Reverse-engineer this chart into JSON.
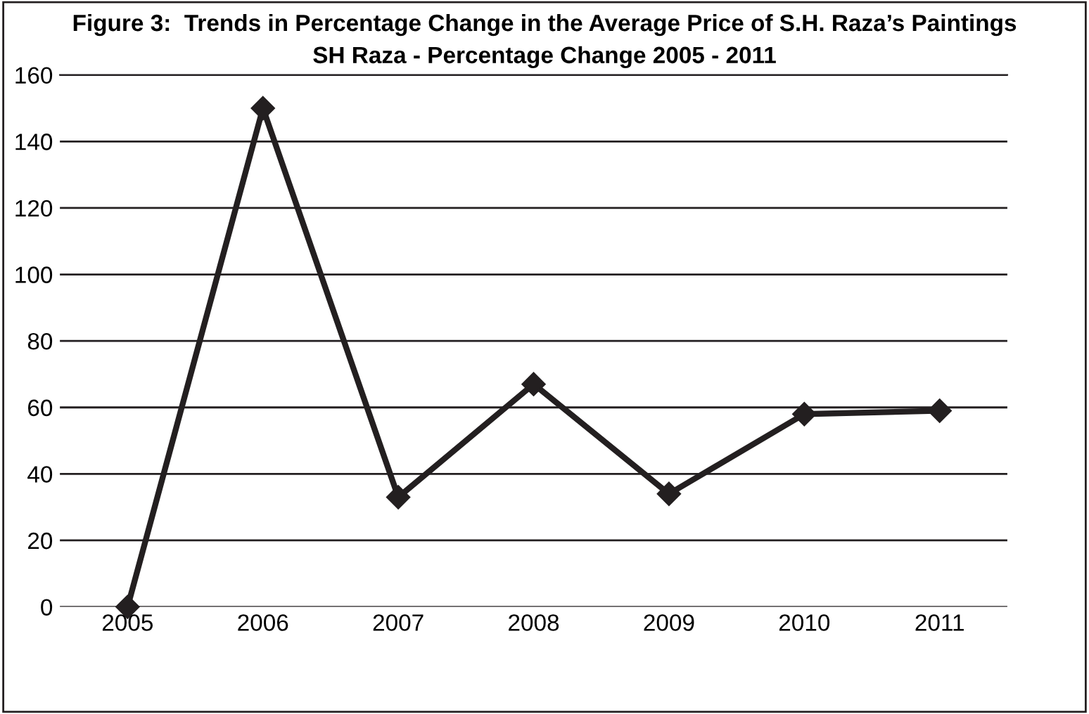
{
  "chart_data": {
    "type": "line",
    "title": "Figure 3:  Trends in Percentage Change in the Average Price of S.H. Raza’s Paintings",
    "subtitle": "SH Raza - Percentage Change 2005 - 2011",
    "categories": [
      "2005",
      "2006",
      "2007",
      "2008",
      "2009",
      "2010",
      "2011"
    ],
    "series": [
      {
        "color": "#231f20",
        "values": [
          0,
          150,
          33,
          67,
          34,
          58,
          59
        ]
      }
    ],
    "ylim": [
      0,
      160
    ],
    "yticks": [
      0,
      20,
      40,
      60,
      80,
      100,
      120,
      140,
      160
    ],
    "grid": "y",
    "marker": "diamond",
    "line_style": "solid",
    "legend": false
  }
}
